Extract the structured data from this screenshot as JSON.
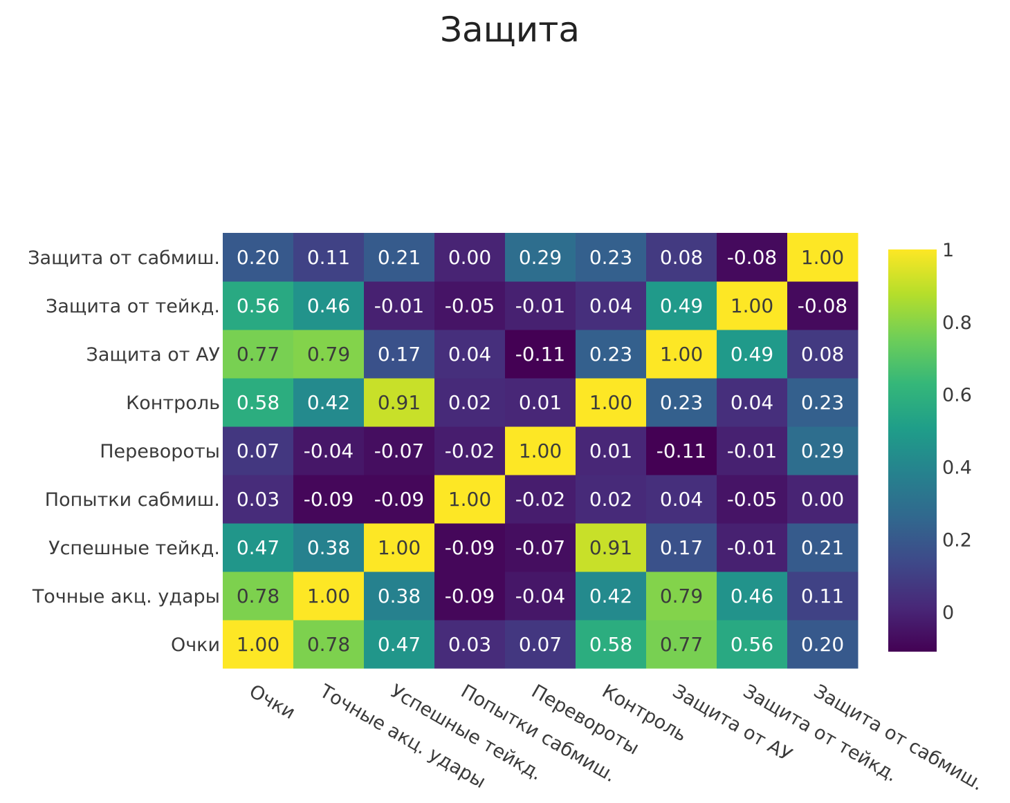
{
  "title": "Защита",
  "chart_data": {
    "type": "heatmap",
    "title": "Защита",
    "x_labels": [
      "Очки",
      "Точные акц. удары",
      "Успешные тейкд.",
      "Попытки сабмиш.",
      "Перевороты",
      "Контроль",
      "Защита от АУ",
      "Защита от тейкд.",
      "Защита от сабмиш."
    ],
    "y_labels": [
      "Очки",
      "Точные акц. удары",
      "Успешные тейкд.",
      "Попытки сабмиш.",
      "Перевороты",
      "Контроль",
      "Защита от АУ",
      "Защита от тейкд.",
      "Защита от сабмиш."
    ],
    "values": [
      [
        1.0,
        0.78,
        0.47,
        0.03,
        0.07,
        0.58,
        0.77,
        0.56,
        0.2
      ],
      [
        0.78,
        1.0,
        0.38,
        -0.09,
        -0.04,
        0.42,
        0.79,
        0.46,
        0.11
      ],
      [
        0.47,
        0.38,
        1.0,
        -0.09,
        -0.07,
        0.91,
        0.17,
        -0.01,
        0.21
      ],
      [
        0.03,
        -0.09,
        -0.09,
        1.0,
        -0.02,
        0.02,
        0.04,
        -0.05,
        0.0
      ],
      [
        0.07,
        -0.04,
        -0.07,
        -0.02,
        1.0,
        0.01,
        -0.11,
        -0.01,
        0.29
      ],
      [
        0.58,
        0.42,
        0.91,
        0.02,
        0.01,
        1.0,
        0.23,
        0.04,
        0.23
      ],
      [
        0.77,
        0.79,
        0.17,
        0.04,
        -0.11,
        0.23,
        1.0,
        0.49,
        0.08
      ],
      [
        0.56,
        0.46,
        -0.01,
        -0.05,
        -0.01,
        0.04,
        0.49,
        1.0,
        -0.08
      ],
      [
        0.2,
        0.11,
        0.21,
        0.0,
        0.29,
        0.23,
        0.08,
        -0.08,
        1.0
      ]
    ],
    "value_format": "2-decimal",
    "colorscale": "Viridis",
    "zmin": -0.11,
    "zmax": 1.0,
    "colorbar_ticks": [
      0,
      0.2,
      0.4,
      0.6,
      0.8,
      1
    ],
    "colorbar_tick_labels": [
      "0",
      "0.2",
      "0.4",
      "0.6",
      "0.8",
      "1"
    ],
    "colorbar_placement": "right",
    "x_tick_rotation_deg": 30
  }
}
